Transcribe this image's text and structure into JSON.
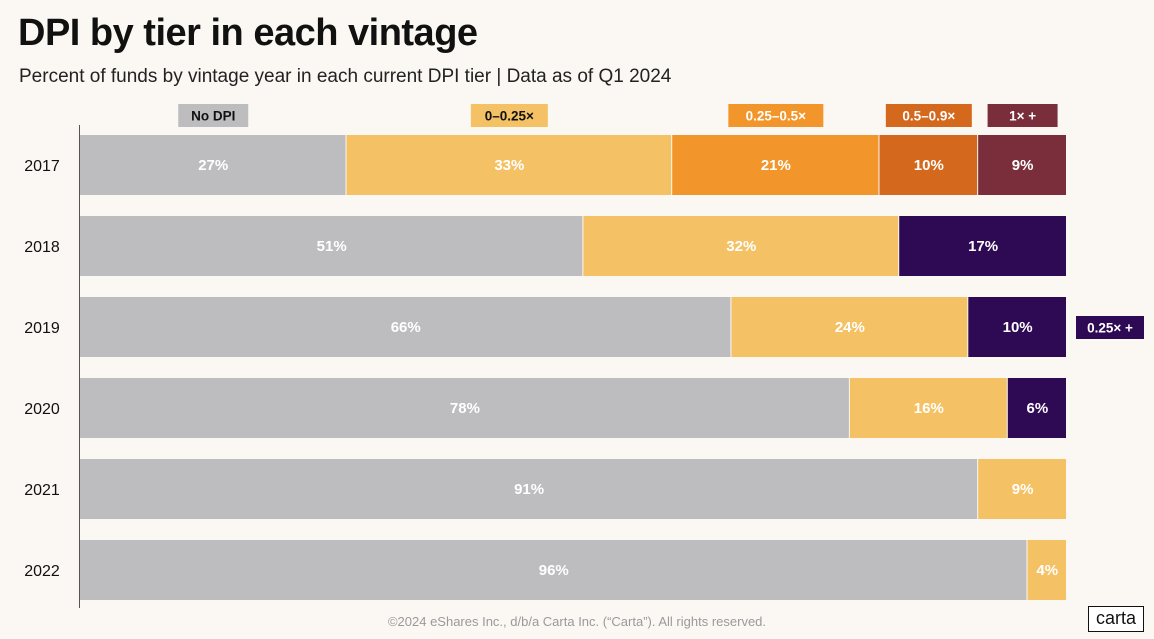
{
  "title": "DPI by tier in each vintage",
  "subtitle": "Percent of funds by vintage year in each current DPI tier  |  Data as of Q1 2024",
  "footer": "©2024 eShares Inc., d/b/a Carta Inc. (“Carta”). All rights reserved.",
  "logo_text": "carta",
  "colors": {
    "no_dpi": "#bdbdbf",
    "t0_025": "#f4c265",
    "t025_05": "#f2952a",
    "t05_09": "#d4691e",
    "t1_plus": "#7a2e3b",
    "t025_plus": "#2e0a55"
  },
  "chart_data": {
    "type": "bar",
    "orientation": "horizontal",
    "stacked": true,
    "categories": [
      "2017",
      "2018",
      "2019",
      "2020",
      "2021",
      "2022"
    ],
    "xlim": [
      0,
      100
    ],
    "legend": [
      {
        "label": "No DPI",
        "color": "#bdbdbf",
        "text_color": "#111111"
      },
      {
        "label": "0–0.25×",
        "color": "#f4c265",
        "text_color": "#111111"
      },
      {
        "label": "0.25–0.5×",
        "color": "#f2952a",
        "text_color": "#ffffff"
      },
      {
        "label": "0.5–0.9×",
        "color": "#d4691e",
        "text_color": "#ffffff"
      },
      {
        "label": "1× +",
        "color": "#7a2e3b",
        "text_color": "#ffffff"
      }
    ],
    "side_legend": {
      "label": "0.25× +",
      "color": "#2e0a55",
      "text_color": "#ffffff",
      "row": "2019"
    },
    "rows": [
      {
        "year": "2017",
        "segments": [
          {
            "value": 27,
            "label": "27%",
            "color": "#bdbdbf"
          },
          {
            "value": 33,
            "label": "33%",
            "color": "#f4c265"
          },
          {
            "value": 21,
            "label": "21%",
            "color": "#f2952a"
          },
          {
            "value": 10,
            "label": "10%",
            "color": "#d4691e"
          },
          {
            "value": 9,
            "label": "9%",
            "color": "#7a2e3b"
          }
        ]
      },
      {
        "year": "2018",
        "segments": [
          {
            "value": 51,
            "label": "51%",
            "color": "#bdbdbf"
          },
          {
            "value": 32,
            "label": "32%",
            "color": "#f4c265"
          },
          {
            "value": 17,
            "label": "17%",
            "color": "#2e0a55"
          }
        ]
      },
      {
        "year": "2019",
        "segments": [
          {
            "value": 66,
            "label": "66%",
            "color": "#bdbdbf"
          },
          {
            "value": 24,
            "label": "24%",
            "color": "#f4c265"
          },
          {
            "value": 10,
            "label": "10%",
            "color": "#2e0a55"
          }
        ]
      },
      {
        "year": "2020",
        "segments": [
          {
            "value": 78,
            "label": "78%",
            "color": "#bdbdbf"
          },
          {
            "value": 16,
            "label": "16%",
            "color": "#f4c265"
          },
          {
            "value": 6,
            "label": "6%",
            "color": "#2e0a55"
          }
        ]
      },
      {
        "year": "2021",
        "segments": [
          {
            "value": 91,
            "label": "91%",
            "color": "#bdbdbf"
          },
          {
            "value": 9,
            "label": "9%",
            "color": "#f4c265"
          }
        ]
      },
      {
        "year": "2022",
        "segments": [
          {
            "value": 96,
            "label": "96%",
            "color": "#bdbdbf"
          },
          {
            "value": 4,
            "label": "4%",
            "color": "#f4c265"
          }
        ]
      }
    ]
  }
}
